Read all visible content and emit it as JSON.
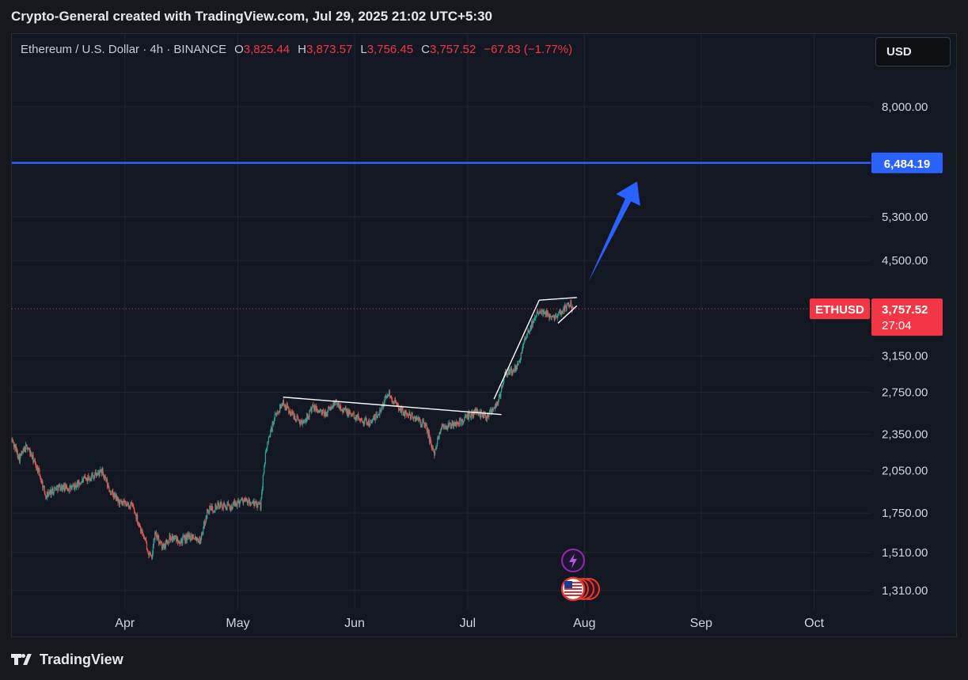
{
  "header": {
    "title": "Crypto-General created with TradingView.com, Jul 29, 2025 21:02 UTC+5:30"
  },
  "legend": {
    "symbol": "Ethereum / U.S. Dollar · 4h · BINANCE",
    "o_label": "O",
    "o_value": "3,825.44",
    "h_label": "H",
    "h_value": "3,873.57",
    "l_label": "L",
    "l_value": "3,756.45",
    "c_label": "C",
    "c_value": "3,757.52",
    "change": "−67.83 (−1.77%)"
  },
  "currency_button": {
    "label": "USD"
  },
  "price_tag": {
    "symbol": "ETHUSD",
    "price": "3,757.52",
    "countdown": "27:04"
  },
  "target_tag": {
    "price": "6,484.19"
  },
  "footer": {
    "brand": "TradingView"
  },
  "colors": {
    "up": "#26a69a",
    "down": "#ef5350",
    "target_line": "#2962ff",
    "price_tag": "#f23645",
    "arrow": "#2962ff",
    "trendline": "#ffffff"
  },
  "icons": [
    "lightning-event-icon",
    "us-flag-event-icon"
  ],
  "chart_data": {
    "type": "candlestick",
    "interval": "4h",
    "scale": "log",
    "ylim": [
      1220,
      10500
    ],
    "y_ticks": [
      "8,000.00",
      "5,300.00",
      "4,500.00",
      "3,150.00",
      "2,750.00",
      "2,350.00",
      "2,050.00",
      "1,750.00",
      "1,510.00",
      "1,310.00"
    ],
    "y_tick_values": [
      8000,
      5300,
      4500,
      3150,
      2750,
      2350,
      2050,
      1750,
      1510,
      1310
    ],
    "x_ticks": [
      "Apr",
      "May",
      "Jun",
      "Jul",
      "Aug",
      "Sep",
      "Oct"
    ],
    "x_tick_dates": [
      "2025-04-01",
      "2025-05-01",
      "2025-06-01",
      "2025-07-01",
      "2025-08-01",
      "2025-09-01",
      "2025-10-01"
    ],
    "xlim": [
      "2025-03-02",
      "2025-10-16"
    ],
    "last_price": 3757.52,
    "target_level": 6484.19,
    "grid": true,
    "price_path": [
      {
        "date": "2025-03-02",
        "price": 2300
      },
      {
        "date": "2025-03-04",
        "price": 2150
      },
      {
        "date": "2025-03-06",
        "price": 2250
      },
      {
        "date": "2025-03-09",
        "price": 2050
      },
      {
        "date": "2025-03-11",
        "price": 1870
      },
      {
        "date": "2025-03-14",
        "price": 1930
      },
      {
        "date": "2025-03-18",
        "price": 1920
      },
      {
        "date": "2025-03-21",
        "price": 1980
      },
      {
        "date": "2025-03-24",
        "price": 2020
      },
      {
        "date": "2025-03-26",
        "price": 2040
      },
      {
        "date": "2025-03-28",
        "price": 1900
      },
      {
        "date": "2025-03-31",
        "price": 1810
      },
      {
        "date": "2025-04-03",
        "price": 1800
      },
      {
        "date": "2025-04-06",
        "price": 1600
      },
      {
        "date": "2025-04-08",
        "price": 1470
      },
      {
        "date": "2025-04-09",
        "price": 1620
      },
      {
        "date": "2025-04-11",
        "price": 1540
      },
      {
        "date": "2025-04-13",
        "price": 1600
      },
      {
        "date": "2025-04-16",
        "price": 1580
      },
      {
        "date": "2025-04-19",
        "price": 1610
      },
      {
        "date": "2025-04-21",
        "price": 1580
      },
      {
        "date": "2025-04-23",
        "price": 1770
      },
      {
        "date": "2025-04-26",
        "price": 1800
      },
      {
        "date": "2025-04-29",
        "price": 1790
      },
      {
        "date": "2025-05-02",
        "price": 1840
      },
      {
        "date": "2025-05-05",
        "price": 1810
      },
      {
        "date": "2025-05-07",
        "price": 1800
      },
      {
        "date": "2025-05-08",
        "price": 2100
      },
      {
        "date": "2025-05-09",
        "price": 2300
      },
      {
        "date": "2025-05-11",
        "price": 2520
      },
      {
        "date": "2025-05-13",
        "price": 2650
      },
      {
        "date": "2025-05-15",
        "price": 2550
      },
      {
        "date": "2025-05-18",
        "price": 2450
      },
      {
        "date": "2025-05-21",
        "price": 2600
      },
      {
        "date": "2025-05-24",
        "price": 2530
      },
      {
        "date": "2025-05-27",
        "price": 2650
      },
      {
        "date": "2025-05-30",
        "price": 2550
      },
      {
        "date": "2025-06-02",
        "price": 2500
      },
      {
        "date": "2025-06-05",
        "price": 2450
      },
      {
        "date": "2025-06-07",
        "price": 2520
      },
      {
        "date": "2025-06-10",
        "price": 2750
      },
      {
        "date": "2025-06-12",
        "price": 2620
      },
      {
        "date": "2025-06-14",
        "price": 2550
      },
      {
        "date": "2025-06-17",
        "price": 2500
      },
      {
        "date": "2025-06-20",
        "price": 2420
      },
      {
        "date": "2025-06-22",
        "price": 2180
      },
      {
        "date": "2025-06-24",
        "price": 2420
      },
      {
        "date": "2025-06-27",
        "price": 2430
      },
      {
        "date": "2025-06-30",
        "price": 2480
      },
      {
        "date": "2025-07-03",
        "price": 2560
      },
      {
        "date": "2025-07-06",
        "price": 2520
      },
      {
        "date": "2025-07-09",
        "price": 2650
      },
      {
        "date": "2025-07-10",
        "price": 2780
      },
      {
        "date": "2025-07-11",
        "price": 2950
      },
      {
        "date": "2025-07-14",
        "price": 3000
      },
      {
        "date": "2025-07-16",
        "price": 3300
      },
      {
        "date": "2025-07-18",
        "price": 3550
      },
      {
        "date": "2025-07-20",
        "price": 3760
      },
      {
        "date": "2025-07-22",
        "price": 3680
      },
      {
        "date": "2025-07-24",
        "price": 3650
      },
      {
        "date": "2025-07-26",
        "price": 3720
      },
      {
        "date": "2025-07-28",
        "price": 3850
      },
      {
        "date": "2025-07-29",
        "price": 3757.52
      }
    ],
    "annotations": [
      {
        "type": "trendline",
        "from": {
          "date": "2025-05-13",
          "price": 2700
        },
        "to": {
          "date": "2025-07-10",
          "price": 2530
        }
      },
      {
        "type": "trendline",
        "from": {
          "date": "2025-07-08",
          "price": 2680
        },
        "to": {
          "date": "2025-07-20",
          "price": 3880
        }
      },
      {
        "type": "trendline",
        "from": {
          "date": "2025-07-20",
          "price": 3880
        },
        "to": {
          "date": "2025-07-30",
          "price": 3920
        }
      },
      {
        "type": "trendline",
        "from": {
          "date": "2025-07-25",
          "price": 3560
        },
        "to": {
          "date": "2025-07-30",
          "price": 3800
        }
      },
      {
        "type": "arrow",
        "from": {
          "date": "2025-08-02",
          "price": 4150
        },
        "to": {
          "date": "2025-08-15",
          "price": 6050
        }
      }
    ]
  }
}
